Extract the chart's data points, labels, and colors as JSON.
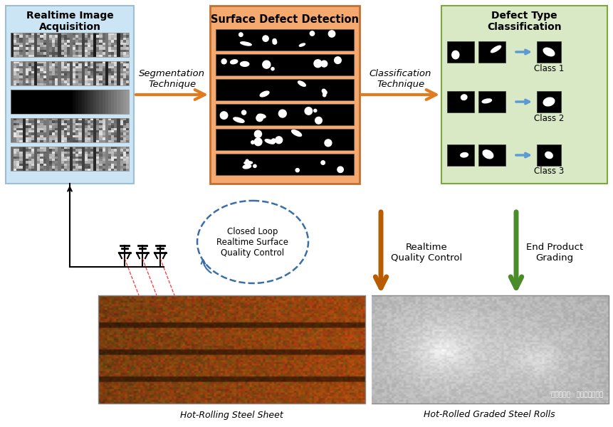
{
  "bg_color": "#ffffff",
  "box1_color": "#cce5f5",
  "box2_color": "#f5a96e",
  "box3_color": "#d9e8c5",
  "arrow_orange": "#e07b20",
  "arrow_green": "#4a8c2a",
  "arrow_blue": "#5b9bd5",
  "dashed_circle_color": "#3a6ea8",
  "title1": "Realtime Image\nAcquisition",
  "title2": "Surface Defect Detection",
  "title3": "Defect Type\nClassification",
  "label_seg": "Segmentation\nTechnique",
  "label_cls": "Classification\nTechnique",
  "label_loop": "Closed Loop\nRealtime Surface\nQuality Control",
  "label_rt": "Realtime\nQuality Control",
  "label_ep": "End Product\nGrading",
  "label_class1": "Class 1",
  "label_class2": "Class 2",
  "label_class3": "Class 3",
  "label_hotroll": "Hot-Rolling Steel Sheet",
  "label_hotrolled": "Hot-Rolled Graded Steel Rolls",
  "watermark": "微信公众号   深度学习爱好者"
}
